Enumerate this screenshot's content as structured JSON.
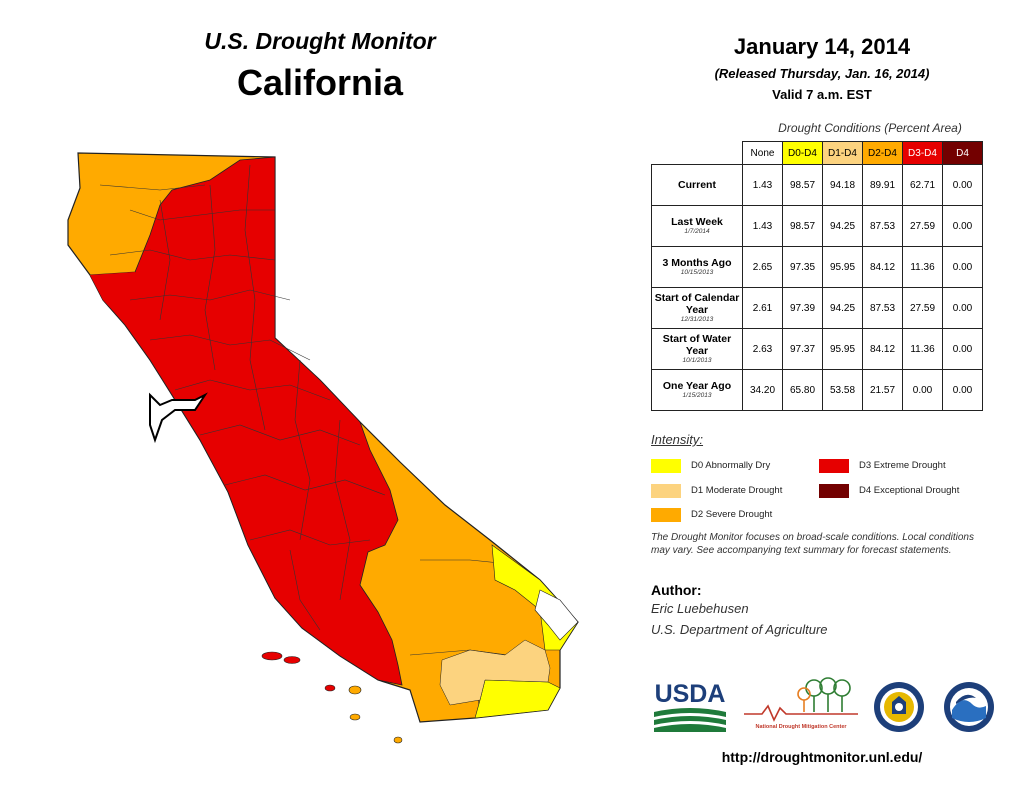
{
  "header": {
    "title": "U.S. Drought Monitor",
    "state": "California"
  },
  "release": {
    "date": "January 14, 2014",
    "released": "(Released Thursday, Jan. 16, 2014)",
    "valid": "Valid 7 a.m. EST"
  },
  "table": {
    "caption": "Drought Conditions (Percent Area)",
    "columns": [
      "None",
      "D0-D4",
      "D1-D4",
      "D2-D4",
      "D3-D4",
      "D4"
    ],
    "column_colors": [
      "#ffffff",
      "#ffff00",
      "#fcd37f",
      "#ffaa00",
      "#e60000",
      "#730000"
    ],
    "rows": [
      {
        "label": "Current",
        "sub": "",
        "values": [
          "1.43",
          "98.57",
          "94.18",
          "89.91",
          "62.71",
          "0.00"
        ]
      },
      {
        "label": "Last Week",
        "sub": "1/7/2014",
        "values": [
          "1.43",
          "98.57",
          "94.25",
          "87.53",
          "27.59",
          "0.00"
        ]
      },
      {
        "label": "3 Months Ago",
        "sub": "10/15/2013",
        "values": [
          "2.65",
          "97.35",
          "95.95",
          "84.12",
          "11.36",
          "0.00"
        ]
      },
      {
        "label": "Start of Calendar Year",
        "sub": "12/31/2013",
        "values": [
          "2.61",
          "97.39",
          "94.25",
          "87.53",
          "27.59",
          "0.00"
        ]
      },
      {
        "label": "Start of Water Year",
        "sub": "10/1/2013",
        "values": [
          "2.63",
          "97.37",
          "95.95",
          "84.12",
          "11.36",
          "0.00"
        ]
      },
      {
        "label": "One Year Ago",
        "sub": "1/15/2013",
        "values": [
          "34.20",
          "65.80",
          "53.58",
          "21.57",
          "0.00",
          "0.00"
        ]
      }
    ]
  },
  "legend": {
    "title": "Intensity:",
    "items": [
      {
        "label": "D0 Abnormally Dry",
        "color": "#ffff00"
      },
      {
        "label": "D1 Moderate Drought",
        "color": "#fcd37f"
      },
      {
        "label": "D2 Severe Drought",
        "color": "#ffaa00"
      },
      {
        "label": "D3 Extreme Drought",
        "color": "#e60000"
      },
      {
        "label": "D4 Exceptional Drought",
        "color": "#730000"
      }
    ]
  },
  "note": "The Drought Monitor focuses on broad-scale conditions. Local conditions may vary. See accompanying text summary for forecast statements.",
  "author": {
    "label": "Author:",
    "name": "Eric Luebehusen",
    "org": "U.S. Department of Agriculture"
  },
  "logos": {
    "usda": "USDA",
    "ndmc": "National Drought Mitigation Center",
    "doc": "dept-of-commerce-seal",
    "noaa": "noaa-logo"
  },
  "url": "http://droughtmonitor.unl.edu/"
}
